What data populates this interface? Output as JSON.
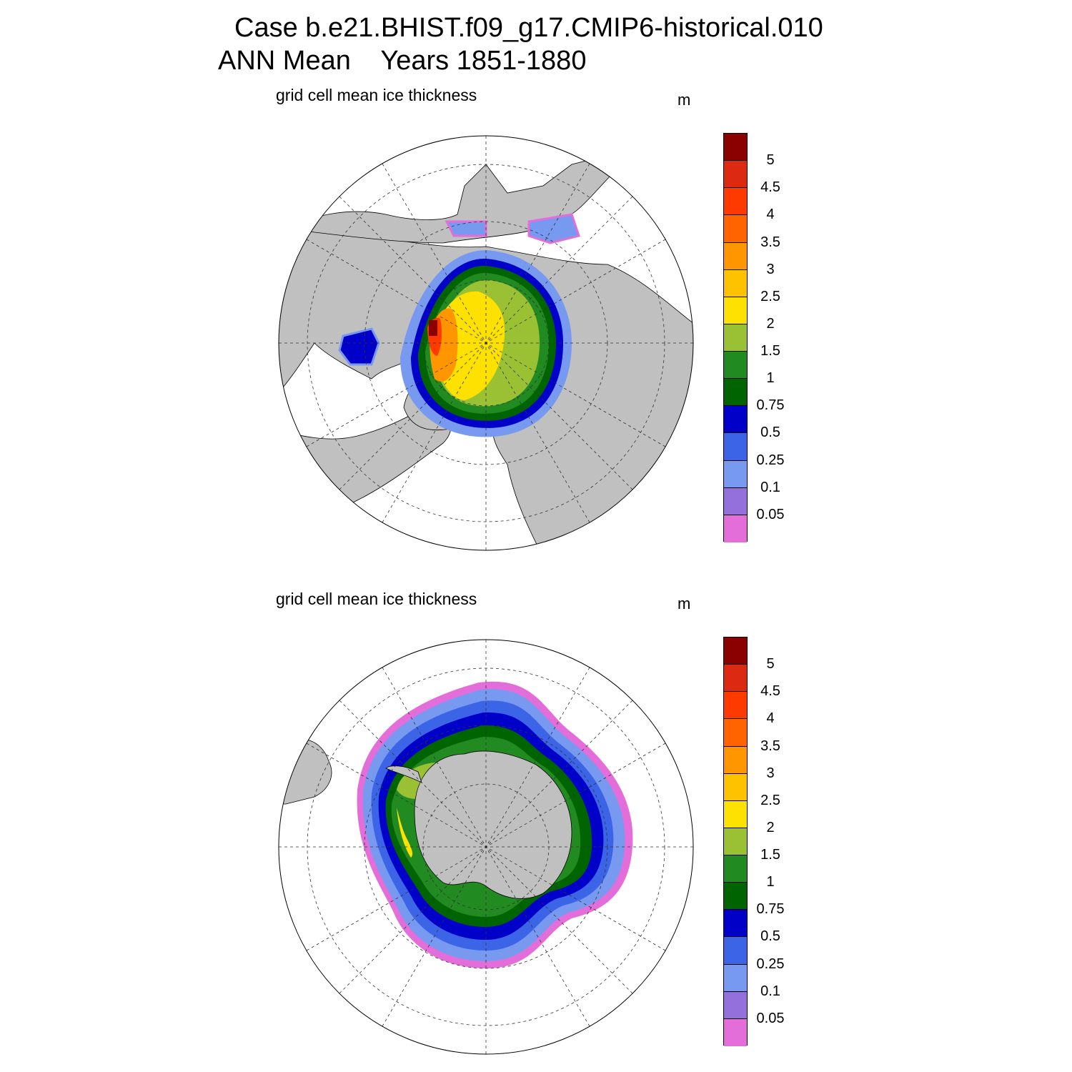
{
  "header": {
    "case_line": "Case b.e21.BHIST.f09_g17.CMIP6-historical.010",
    "period_line": "ANN Mean    Years 1851-1880"
  },
  "panels": [
    {
      "title": "grid cell mean ice thickness",
      "unit": "m",
      "hemisphere": "north"
    },
    {
      "title": "grid cell mean ice thickness",
      "unit": "m",
      "hemisphere": "south"
    }
  ],
  "colorbar": {
    "labels": [
      "5",
      "4.5",
      "4",
      "3.5",
      "3",
      "2.5",
      "2",
      "1.5",
      "1",
      "0.75",
      "0.5",
      "0.25",
      "0.1",
      "0.05"
    ],
    "colors_top_to_bottom": [
      "#8b0000",
      "#dc2a12",
      "#ff3a00",
      "#ff6400",
      "#ff9600",
      "#ffc200",
      "#ffe100",
      "#9ac134",
      "#218a21",
      "#006400",
      "#0000c8",
      "#3c64e6",
      "#7799f0",
      "#9370db",
      "#e36ed9"
    ]
  },
  "colors": {
    "land": "#c0c0c0",
    "ocean": "#ffffff"
  }
}
